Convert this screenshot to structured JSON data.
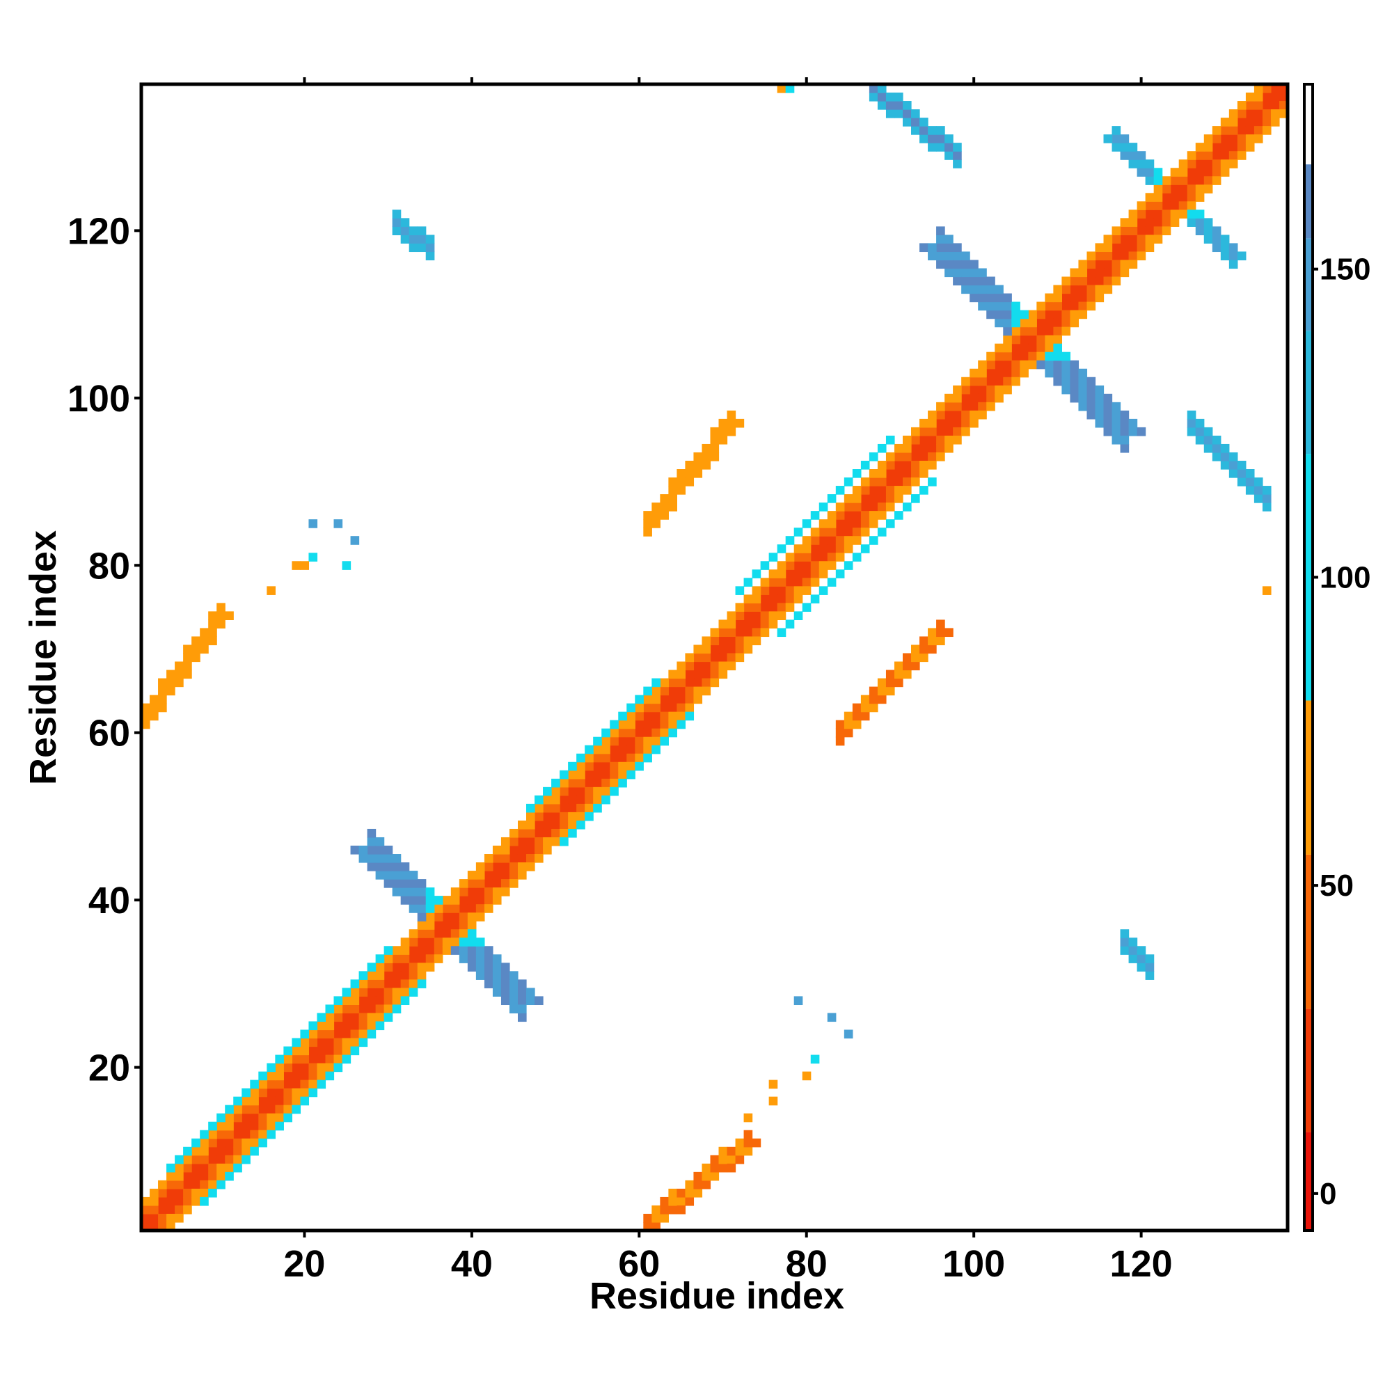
{
  "chart_data": {
    "type": "heatmap",
    "title": "",
    "xlabel": "Residue index",
    "ylabel": "Residue index",
    "xlim": [
      1,
      137
    ],
    "ylim": [
      1,
      137
    ],
    "xticks": [
      20,
      40,
      60,
      80,
      100,
      120
    ],
    "yticks": [
      20,
      40,
      60,
      80,
      100,
      120
    ],
    "colorbar": {
      "range": [
        -6,
        180
      ],
      "ticks": [
        0,
        50,
        100,
        150
      ],
      "bands": [
        {
          "from": -6,
          "to": 10,
          "color": "#e8140a"
        },
        {
          "from": 10,
          "to": 30,
          "color": "#f03c08"
        },
        {
          "from": 30,
          "to": 55,
          "color": "#f76808"
        },
        {
          "from": 55,
          "to": 80,
          "color": "#ff9c08"
        },
        {
          "from": 80,
          "to": 120,
          "color": "#12dcee"
        },
        {
          "from": 120,
          "to": 140,
          "color": "#2cb8dc"
        },
        {
          "from": 140,
          "to": 155,
          "color": "#4aa0d4"
        },
        {
          "from": 155,
          "to": 167,
          "color": "#5a88c4"
        },
        {
          "from": 167,
          "to": 180,
          "color": "#ffffff"
        }
      ]
    },
    "grid": false,
    "notes_regions": [
      {
        "kind": "diagonal",
        "from": 1,
        "to": 137,
        "value": 10
      },
      {
        "kind": "diagonal_band",
        "from": 1,
        "to": 136,
        "offset": 1,
        "value": 25
      },
      {
        "kind": "diagonal_band",
        "from": 1,
        "to": 135,
        "offset": 2,
        "value": 50
      },
      {
        "kind": "diagonal_band",
        "from": 1,
        "to": 134,
        "offset": 3,
        "value": 70
      },
      {
        "kind": "diagonal_band",
        "from": 4,
        "to": 30,
        "offset": 4,
        "value": 95
      },
      {
        "kind": "diagonal_band",
        "from": 47,
        "to": 62,
        "offset": 4,
        "value": 95
      },
      {
        "kind": "diagonal_band",
        "from": 72,
        "to": 90,
        "offset": 5,
        "value": 100
      },
      {
        "kind": "antidiagonal",
        "center": 37,
        "half": 9,
        "width": 2,
        "value": 145
      },
      {
        "kind": "antidiagonal",
        "center": 107,
        "half": 11,
        "width": 2,
        "value": 145
      },
      {
        "kind": "antidiagonal",
        "center": 124,
        "half": 7,
        "width": 1,
        "value": 130
      },
      {
        "kind": "strand_pair",
        "x": [
          61,
          73
        ],
        "y": [
          1,
          11
        ],
        "value": 30
      },
      {
        "kind": "strand_pair",
        "x": [
          84,
          96
        ],
        "y": [
          60,
          72
        ],
        "value": 30
      },
      {
        "kind": "strand_pair",
        "x": [
          1,
          10
        ],
        "y": [
          62,
          74
        ],
        "value": 40
      },
      {
        "kind": "strand_pair",
        "x": [
          61,
          71
        ],
        "y": [
          85,
          97
        ],
        "value": 40
      },
      {
        "kind": "patch",
        "x": [
          88,
          98
        ],
        "y": [
          129,
          137
        ],
        "value": 145
      },
      {
        "kind": "patch",
        "x": [
          126,
          135
        ],
        "y": [
          88,
          97
        ],
        "value": 140
      },
      {
        "kind": "patch",
        "x": [
          31,
          35
        ],
        "y": [
          118,
          121
        ],
        "value": 135
      },
      {
        "kind": "patch",
        "x": [
          118,
          121
        ],
        "y": [
          32,
          35
        ],
        "value": 135
      }
    ]
  }
}
